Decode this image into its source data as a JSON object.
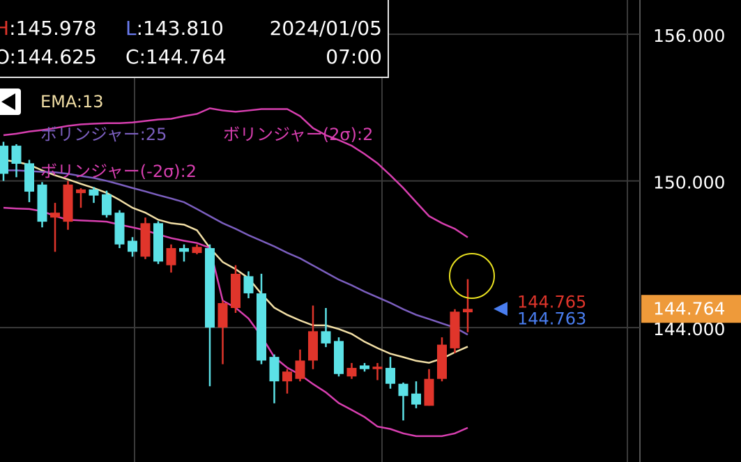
{
  "chart_data": {
    "type": "candlestick",
    "ylim": [
      138.5,
      157.4
    ],
    "yticks": [
      {
        "value": 144,
        "label": "144.000"
      },
      {
        "value": 150,
        "label": "150.000"
      },
      {
        "value": 156,
        "label": "156.000"
      }
    ],
    "grid": true,
    "ohlc_box": {
      "items": [
        {
          "key": "H",
          "text": ":145.978",
          "color": "#e0352b"
        },
        {
          "key": "L",
          "text": ":143.810",
          "color": "#6b7cf0"
        },
        {
          "key": "O",
          "text": ":144.625",
          "color": "#ffffff"
        },
        {
          "key": "C",
          "text": ":144.764",
          "color": "#ffffff"
        }
      ],
      "date": "2024/01/05",
      "time": "07:00"
    },
    "candles": {
      "up_color": "#e0352b",
      "down_color": "#5ce1e6",
      "open": [
        151.44,
        151.44,
        150.72,
        149.85,
        148.5,
        148.33,
        149.5,
        149.65,
        149.45,
        148.7,
        147.55,
        146.9,
        148.27,
        146.55,
        147.25,
        147.05,
        147.25,
        144.0,
        144.8,
        146.1,
        145.4,
        142.8,
        141.8,
        141.9,
        142.65,
        143.85,
        143.45,
        142.0,
        142.45,
        142.3,
        142.35,
        141.7,
        141.3,
        140.8,
        141.9,
        143.15,
        144.625
      ],
      "high": [
        151.6,
        151.5,
        150.86,
        149.95,
        149.1,
        150.0,
        149.7,
        149.75,
        149.6,
        148.8,
        147.7,
        148.5,
        148.35,
        147.4,
        147.4,
        147.4,
        147.4,
        145.1,
        146.55,
        146.3,
        146.2,
        142.9,
        142.3,
        143.1,
        144.9,
        144.8,
        143.6,
        142.55,
        142.55,
        142.55,
        142.8,
        141.75,
        141.8,
        142.3,
        143.6,
        144.75,
        145.978
      ],
      "low": [
        150.0,
        150.15,
        149.13,
        148.1,
        147.1,
        148.0,
        148.9,
        149.1,
        148.5,
        147.25,
        146.9,
        146.8,
        146.6,
        146.25,
        146.7,
        147.0,
        141.6,
        142.5,
        144.6,
        145.2,
        142.5,
        140.9,
        141.3,
        141.8,
        142.3,
        143.2,
        142.0,
        141.9,
        142.2,
        141.85,
        141.5,
        140.2,
        140.7,
        140.8,
        141.8,
        142.95,
        143.81
      ],
      "close": [
        150.29,
        150.7,
        149.56,
        148.33,
        148.7,
        149.85,
        149.65,
        149.4,
        148.6,
        147.4,
        147.1,
        148.27,
        146.7,
        147.25,
        147.1,
        147.3,
        144.0,
        145.0,
        146.2,
        145.4,
        142.65,
        141.8,
        142.2,
        142.65,
        143.85,
        143.35,
        142.1,
        142.35,
        142.3,
        142.4,
        141.7,
        141.2,
        140.85,
        141.9,
        143.3,
        144.65,
        144.764
      ]
    },
    "lines": [
      {
        "name": "EMA:13",
        "color": "#f2dfa6",
        "values": [
          150.86,
          150.78,
          150.66,
          150.43,
          150.23,
          150.06,
          149.88,
          149.71,
          149.51,
          149.22,
          148.9,
          148.7,
          148.41,
          148.27,
          148.21,
          147.98,
          147.26,
          146.68,
          146.39,
          146.02,
          145.38,
          144.81,
          144.52,
          144.29,
          144.09,
          144.09,
          143.94,
          143.74,
          143.42,
          143.16,
          142.93,
          142.79,
          142.64,
          142.56,
          142.73,
          142.99,
          143.22
        ]
      },
      {
        "name": "ボリンジャー:25",
        "color": "#7c5fc0",
        "values": [
          150.43,
          150.43,
          150.4,
          150.37,
          150.35,
          150.29,
          150.2,
          150.12,
          150.0,
          149.86,
          149.71,
          149.57,
          149.42,
          149.28,
          149.13,
          148.85,
          148.56,
          148.27,
          148.04,
          147.78,
          147.55,
          147.32,
          147.06,
          146.83,
          146.54,
          146.25,
          145.96,
          145.73,
          145.47,
          145.24,
          145.01,
          144.75,
          144.52,
          144.35,
          144.17,
          144.0,
          143.71
        ]
      },
      {
        "name": "ボリンジャー(2σ):2",
        "color": "#d83fb0",
        "values": [
          151.87,
          151.93,
          152.02,
          152.08,
          152.16,
          152.25,
          152.31,
          152.34,
          152.36,
          152.36,
          152.39,
          152.45,
          152.51,
          152.54,
          152.65,
          152.74,
          152.97,
          152.88,
          152.83,
          152.88,
          152.94,
          152.94,
          152.94,
          152.65,
          152.16,
          151.87,
          151.67,
          151.44,
          151.1,
          150.72,
          150.23,
          149.71,
          149.13,
          148.56,
          148.27,
          148.04,
          147.69
        ]
      },
      {
        "name": "ボリンジャー(-2σ):2",
        "color": "#d83fb0",
        "values": [
          148.9,
          148.87,
          148.85,
          148.76,
          148.56,
          148.41,
          148.38,
          148.36,
          148.33,
          148.21,
          148.1,
          147.98,
          147.81,
          147.66,
          147.55,
          147.46,
          147.26,
          145.1,
          144.81,
          144.37,
          143.65,
          142.79,
          142.36,
          142.07,
          141.69,
          141.35,
          140.91,
          140.63,
          140.34,
          139.95,
          139.85,
          139.67,
          139.56,
          139.56,
          139.56,
          139.67,
          139.9
        ]
      }
    ],
    "bid": {
      "value": 144.765,
      "color": "#e0352b"
    },
    "ask": {
      "value": 144.763,
      "color": "#4a7ef0"
    },
    "current": {
      "value": 144.764,
      "color": "#ee9a3a"
    }
  }
}
